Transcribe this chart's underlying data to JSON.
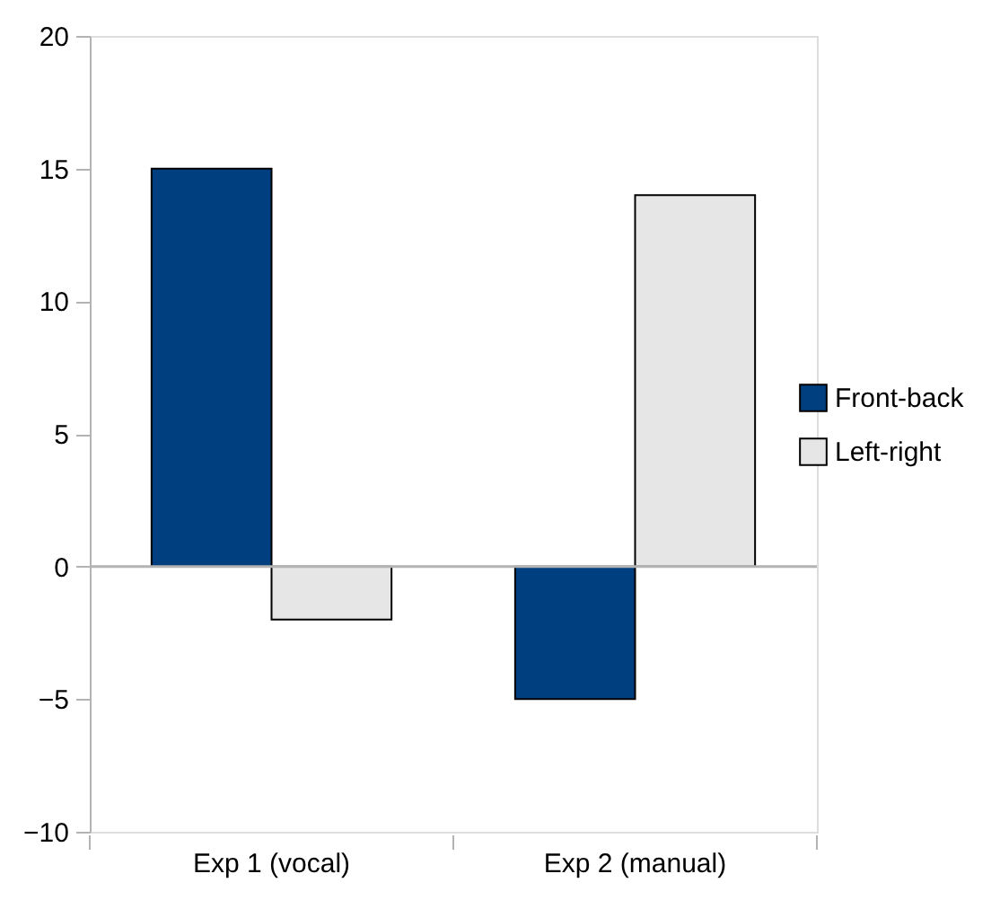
{
  "chart_data": {
    "type": "bar",
    "categories": [
      "Exp 1 (vocal)",
      "Exp 2 (manual)"
    ],
    "series": [
      {
        "name": "Front-back",
        "color": "#003f7f",
        "values": [
          15,
          -5
        ]
      },
      {
        "name": "Left-right",
        "color": "#e6e6e6",
        "values": [
          -2,
          14
        ]
      }
    ],
    "ylim": [
      -10,
      20
    ],
    "yticks": [
      -10,
      -5,
      0,
      5,
      10,
      15,
      20
    ],
    "grid": false,
    "legend": "right",
    "ref_lines": [
      {
        "axis": "y",
        "value": 0,
        "color": "#b3b3b3"
      }
    ]
  }
}
